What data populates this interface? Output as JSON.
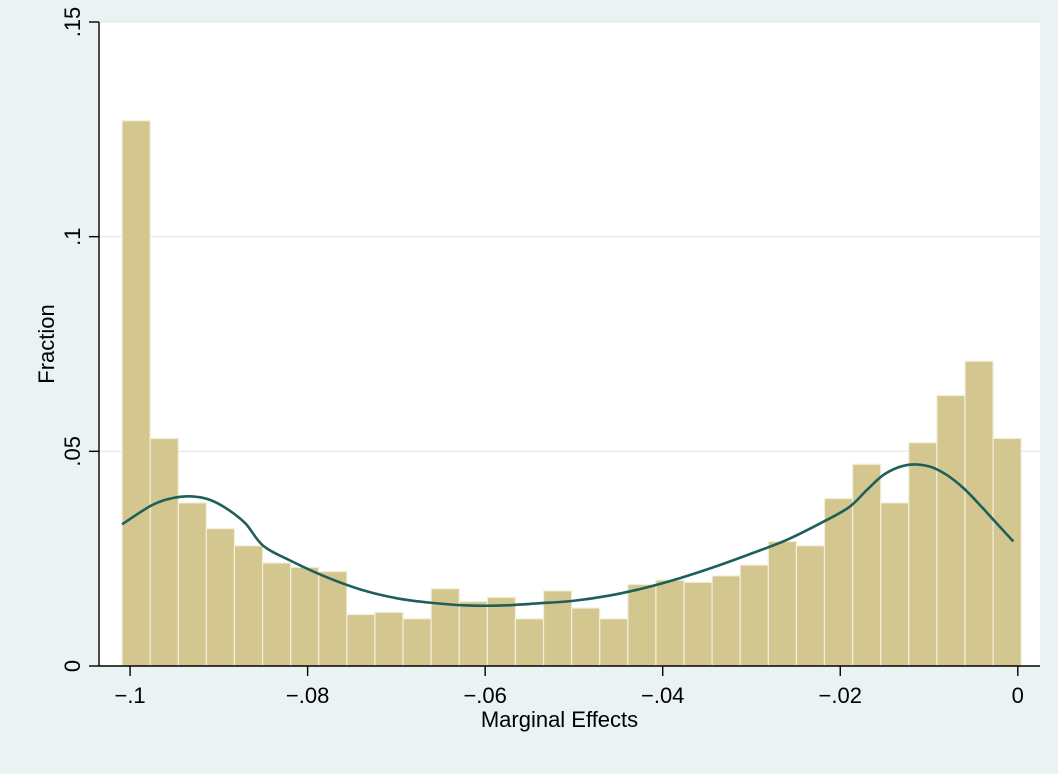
{
  "chart_data": {
    "type": "bar",
    "xlabel": "Marginal Effects",
    "ylabel": "Fraction",
    "xlim": [
      -0.1035,
      0.0025
    ],
    "ylim": [
      0,
      0.15
    ],
    "x_ticks": [
      {
        "value": -0.1,
        "label": "−.1"
      },
      {
        "value": -0.08,
        "label": "−.08"
      },
      {
        "value": -0.06,
        "label": "−.06"
      },
      {
        "value": -0.04,
        "label": "−.04"
      },
      {
        "value": -0.02,
        "label": "−.02"
      },
      {
        "value": 0,
        "label": "0"
      }
    ],
    "y_ticks": [
      {
        "value": 0,
        "label": "0"
      },
      {
        "value": 0.05,
        "label": ".05"
      },
      {
        "value": 0.1,
        "label": ".1"
      },
      {
        "value": 0.15,
        "label": ".15"
      }
    ],
    "grid": true,
    "bins": {
      "start": -0.1009,
      "width": 0.003165,
      "fractions": [
        0.127,
        0.053,
        0.038,
        0.032,
        0.028,
        0.024,
        0.023,
        0.022,
        0.012,
        0.0125,
        0.011,
        0.018,
        0.015,
        0.016,
        0.011,
        0.0175,
        0.0135,
        0.011,
        0.019,
        0.02,
        0.0195,
        0.021,
        0.0235,
        0.029,
        0.028,
        0.039,
        0.047,
        0.038,
        0.052,
        0.063,
        0.071,
        0.053
      ]
    },
    "density_curve": {
      "x": [
        -0.1009,
        -0.0975,
        -0.095,
        -0.093,
        -0.091,
        -0.089,
        -0.087,
        -0.085,
        -0.082,
        -0.078,
        -0.074,
        -0.07,
        -0.066,
        -0.062,
        -0.058,
        -0.054,
        -0.05,
        -0.046,
        -0.042,
        -0.038,
        -0.034,
        -0.03,
        -0.026,
        -0.022,
        -0.019,
        -0.017,
        -0.015,
        -0.0125,
        -0.01,
        -0.008,
        -0.006,
        -0.004,
        -0.0025,
        -0.0005
      ],
      "y": [
        0.033,
        0.0375,
        0.0392,
        0.0395,
        0.0387,
        0.0365,
        0.0332,
        0.028,
        0.0246,
        0.0208,
        0.0178,
        0.0158,
        0.0147,
        0.0141,
        0.0141,
        0.0146,
        0.0152,
        0.0164,
        0.0182,
        0.0205,
        0.0232,
        0.0262,
        0.0294,
        0.0335,
        0.037,
        0.041,
        0.0447,
        0.0468,
        0.0465,
        0.0445,
        0.0412,
        0.0369,
        0.0335,
        0.029
      ]
    },
    "colors": {
      "background": "#eaf2f3",
      "plot_background": "#ffffff",
      "bar_fill": "#d3c68f",
      "bar_stroke": "#f3efdc",
      "curve": "#1f5f5b",
      "grid": "#e4eeee",
      "axis": "#000000"
    }
  }
}
